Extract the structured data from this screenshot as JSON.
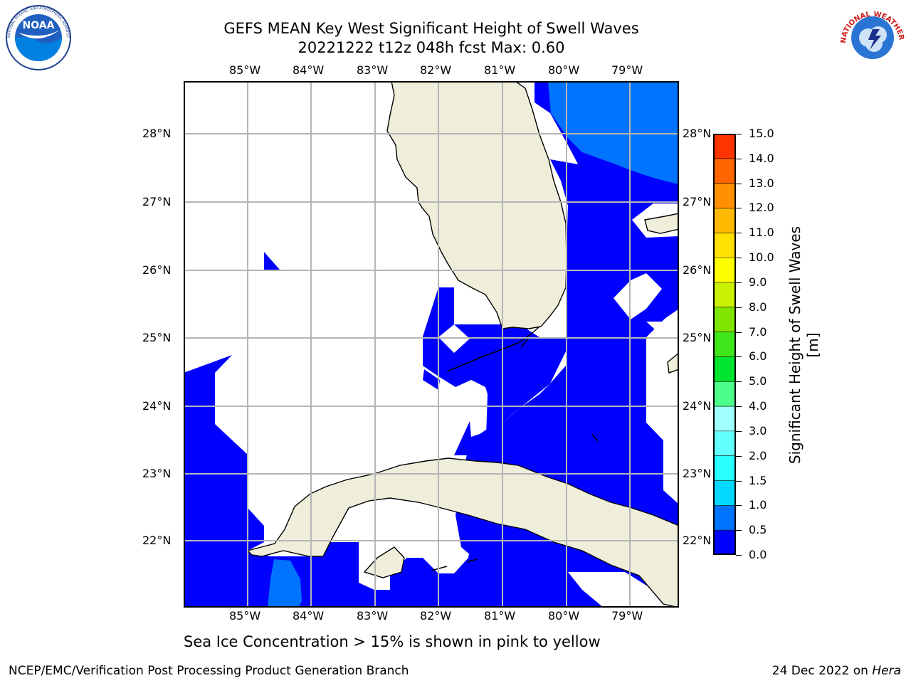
{
  "header": {
    "title_line1": "GEFS MEAN Key West Significant Height of Swell Waves",
    "title_line2": "20221222 t12z 048h fcst   Max: 0.60"
  },
  "logos": {
    "left": {
      "icon": "noaa-logo",
      "text": "NOAA",
      "ring_text": "NATIONAL OCEANIC AND ATMOSPHERIC ADMINISTRATION · U.S. DEPARTMENT OF COMMERCE"
    },
    "right": {
      "icon": "nws-logo",
      "ring_text": "NATIONAL WEATHER SERVICE"
    }
  },
  "map": {
    "lon_labels": [
      "85°W",
      "84°W",
      "83°W",
      "82°W",
      "81°W",
      "80°W",
      "79°W"
    ],
    "lat_labels": [
      "28°N",
      "27°N",
      "26°N",
      "25°N",
      "24°N",
      "23°N",
      "22°N"
    ],
    "colors": {
      "land": "#eeeedb",
      "wave_0_05": "#0000ff",
      "wave_05_1": "#0074ff",
      "grid": "#b5b5b5"
    }
  },
  "colorbar": {
    "title": "Significant Height of Swell Waves [m]",
    "labels": [
      "0.0",
      "0.5",
      "1.0",
      "1.5",
      "2.0",
      "3.0",
      "4.0",
      "5.0",
      "6.0",
      "7.0",
      "8.0",
      "9.0",
      "10.0",
      "11.0",
      "12.0",
      "13.0",
      "14.0",
      "15.0"
    ],
    "colors": [
      "#0000ff",
      "#0073ff",
      "#00d8ff",
      "#29ffff",
      "#62ffff",
      "#a0ffff",
      "#4dff8a",
      "#00e62e",
      "#40e61c",
      "#80e600",
      "#c8f000",
      "#ffff00",
      "#ffe100",
      "#ffb900",
      "#ff9000",
      "#ff6600",
      "#ff3300",
      "#ff0000"
    ]
  },
  "footer": {
    "note": "Sea Ice Concentration > 15% is shown in pink to yellow",
    "left": "NCEP/EMC/Verification Post Processing Product Generation Branch",
    "date": "24 Dec 2022 on",
    "host": "Hera"
  }
}
